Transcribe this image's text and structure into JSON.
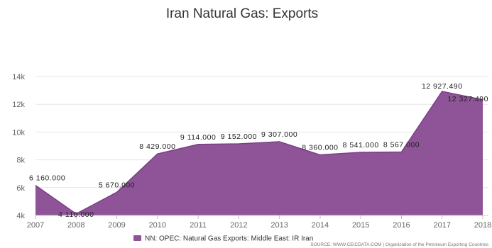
{
  "chart_data": {
    "type": "area",
    "title": "Iran Natural Gas: Exports",
    "xlabel": "",
    "ylabel": "",
    "x": [
      "2007",
      "2008",
      "2009",
      "2010",
      "2011",
      "2012",
      "2013",
      "2014",
      "2015",
      "2016",
      "2017",
      "2018"
    ],
    "series": [
      {
        "name": "NN: OPEC: Natural Gas Exports: Middle East: IR Iran",
        "values": [
          6160,
          4110,
          5670,
          8429,
          9114,
          9152,
          9307,
          8360,
          8541,
          8567,
          12927.49,
          12327.49
        ],
        "labels": [
          "6 160.000",
          "4 110.000",
          "5 670.000",
          "8 429.000",
          "9 114.000",
          "9 152.000",
          "9 307.000",
          "8 360.000",
          "8 541.000",
          "8 567.000",
          "12 927.490",
          "12 327.490"
        ]
      }
    ],
    "ylim": [
      4000,
      14000
    ],
    "yticks": [
      4000,
      6000,
      8000,
      10000,
      12000,
      14000
    ],
    "ytick_labels": [
      "4k",
      "6k",
      "8k",
      "10k",
      "12k",
      "14k"
    ],
    "grid": true,
    "legend": "bottom-center",
    "colors": {
      "area": "#8e5497",
      "line": "#7b3f86"
    },
    "source": "SOURCE: WWW.CEICDATA.COM | Organization of the Petroleum Exporting Countries"
  }
}
